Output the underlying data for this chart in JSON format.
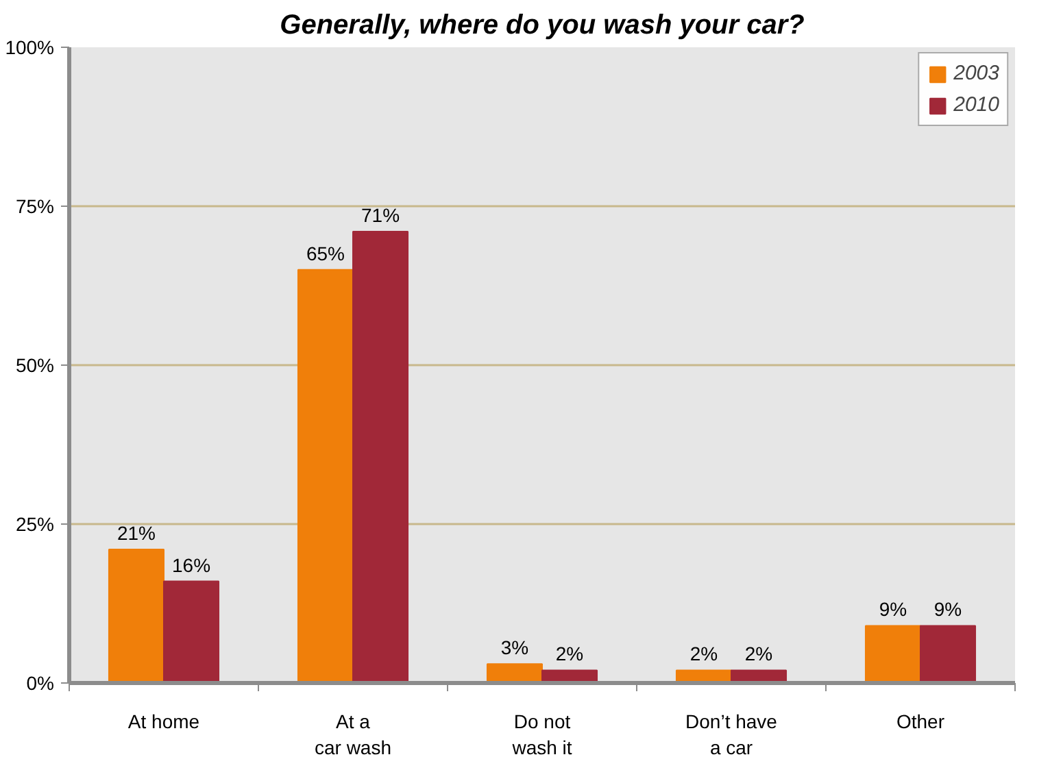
{
  "chart_data": {
    "type": "bar",
    "title": "Generally, where do you wash your car?",
    "categories": [
      "At home",
      "At a\ncar wash",
      "Do not\nwash it",
      "Don’t have\na car",
      "Other"
    ],
    "series": [
      {
        "name": "2003",
        "color": "#f07f0a",
        "values": [
          21,
          65,
          3,
          2,
          9
        ],
        "value_labels": [
          "21%",
          "65%",
          "3%",
          "2%",
          "9%"
        ]
      },
      {
        "name": "2010",
        "color": "#a12838",
        "values": [
          16,
          71,
          2,
          2,
          9
        ],
        "value_labels": [
          "16%",
          "71%",
          "2%",
          "2%",
          "9%"
        ]
      }
    ],
    "ylim": [
      0,
      100
    ],
    "yticks": [
      {
        "value": 0,
        "label": "0%"
      },
      {
        "value": 25,
        "label": "25%"
      },
      {
        "value": 50,
        "label": "50%"
      },
      {
        "value": 75,
        "label": "75%"
      },
      {
        "value": 100,
        "label": "100%"
      }
    ],
    "grid": "y",
    "legend": "top right"
  }
}
